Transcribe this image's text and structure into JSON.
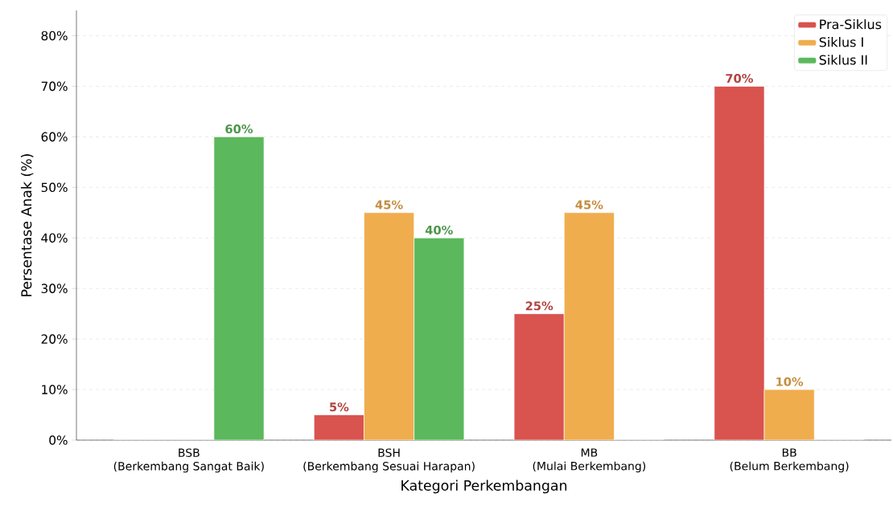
{
  "chart_data": {
    "type": "bar",
    "xlabel": "Kategori Perkembangan",
    "ylabel": "Persentase Anak (%)",
    "categories": [
      "BSB\n(Berkembang Sangat Baik)",
      "BSH\n(Berkembang Sesuai Harapan)",
      "MB\n(Mulai Berkembang)",
      "BB\n(Belum Berkembang)"
    ],
    "series": [
      {
        "name": "Pra-Siklus",
        "color": "#d9534f",
        "values": [
          0,
          5,
          25,
          70
        ],
        "value_labels": [
          null,
          "5%",
          "25%",
          "70%"
        ]
      },
      {
        "name": "Siklus I",
        "color": "#f0ad4e",
        "values": [
          0,
          45,
          45,
          10
        ],
        "value_labels": [
          null,
          "45%",
          "45%",
          "10%"
        ]
      },
      {
        "name": "Siklus II",
        "color": "#5cb85c",
        "values": [
          60,
          40,
          0,
          0
        ],
        "value_labels": [
          "60%",
          "40%",
          null,
          null
        ]
      }
    ],
    "ylim": [
      0,
      85
    ],
    "yticks": [
      {
        "value": 0,
        "label": "0%"
      },
      {
        "value": 10,
        "label": "10%"
      },
      {
        "value": 20,
        "label": "20%"
      },
      {
        "value": 30,
        "label": "30%"
      },
      {
        "value": 40,
        "label": "40%"
      },
      {
        "value": 50,
        "label": "50%"
      },
      {
        "value": 60,
        "label": "60%"
      },
      {
        "value": 70,
        "label": "70%"
      },
      {
        "value": 80,
        "label": "80%"
      }
    ],
    "grid": "y",
    "legend": "top right"
  }
}
